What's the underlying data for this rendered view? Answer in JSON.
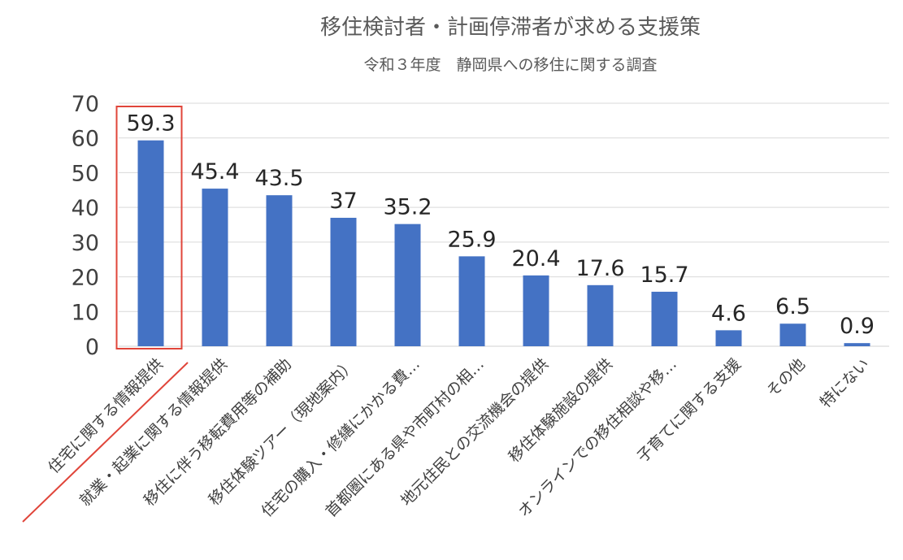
{
  "chart_data": {
    "type": "bar",
    "title": "移住検討者・計画停滞者が求める支援策",
    "subtitle": "令和３年度　静岡県への移住に関する調査",
    "categories": [
      "住宅に関する情報提供",
      "就業・起業に関する情報提供",
      "移住に伴う移転費用等の補助",
      "移住体験ツアー（現地案内）",
      "住宅の購入・修繕にかかる費…",
      "首都圏にある県や市町村の相…",
      "地元住民との交流機会の提供",
      "移住体験施設の提供",
      "オンラインでの移住相談や移…",
      "子育てに関する支援",
      "その他",
      "特にない"
    ],
    "values": [
      59.3,
      45.4,
      43.5,
      37,
      35.2,
      25.9,
      20.4,
      17.6,
      15.7,
      4.6,
      6.5,
      0.9
    ],
    "ylim": [
      0,
      70
    ],
    "yticks": [
      0,
      10,
      20,
      30,
      40,
      50,
      60,
      70
    ],
    "grid": true,
    "bar_color": "#4472C4",
    "highlight": {
      "category_index": 0,
      "color": "#E0453A"
    }
  }
}
